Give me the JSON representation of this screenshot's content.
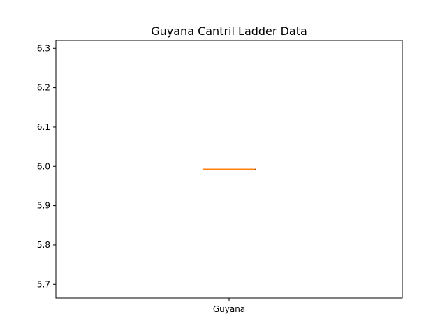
{
  "chart_data": {
    "type": "box",
    "title": "Guyana Cantril Ladder Data",
    "xlabel": "",
    "ylabel": "",
    "categories": [
      "Guyana"
    ],
    "series": [
      {
        "category": "Guyana",
        "min": 5.993,
        "q1": 5.993,
        "median": 5.993,
        "q3": 5.993,
        "max": 5.993
      }
    ],
    "ylim": [
      5.665,
      6.32
    ],
    "yticks": [
      5.7,
      5.8,
      5.9,
      6.0,
      6.1,
      6.2,
      6.3
    ],
    "ytick_labels": [
      "5.7",
      "5.8",
      "5.9",
      "6.0",
      "6.1",
      "6.2",
      "6.3"
    ],
    "grid": false,
    "colors": {
      "box": "#000000",
      "median": "#ff7f0e",
      "axes": "#000000"
    }
  }
}
